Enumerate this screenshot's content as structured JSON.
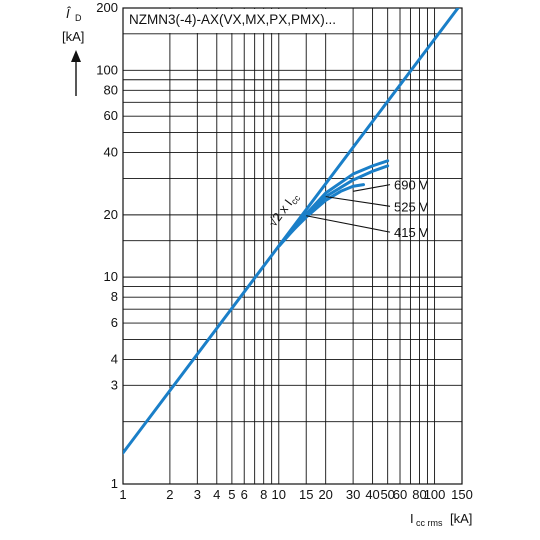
{
  "chart_data": {
    "type": "line",
    "title": "NZMN3(-4)-AX(VX,MX,PX,PMX)...",
    "scale": "log-log",
    "grid": true,
    "xlim": [
      1,
      150
    ],
    "ylim": [
      1,
      200
    ],
    "ylabel": {
      "symbol": "Î",
      "sub": "D",
      "unit": "[kA]"
    },
    "xlabel": {
      "symbol": "I",
      "sub": "cc rms",
      "unit": "[kA]"
    },
    "x_ticks": [
      1,
      2,
      3,
      4,
      5,
      6,
      8,
      10,
      15,
      20,
      30,
      40,
      50,
      60,
      80,
      100,
      150
    ],
    "x_tick_labels": [
      "1",
      "2",
      "3",
      "4",
      "5",
      "6",
      "8",
      "10",
      "15",
      "20",
      "30",
      "40",
      "50",
      "60",
      "80",
      "100",
      "150"
    ],
    "y_ticks": [
      1,
      3,
      4,
      6,
      8,
      10,
      20,
      40,
      60,
      80,
      100,
      200
    ],
    "y_tick_labels": [
      "1",
      "3",
      "4",
      "6",
      "8",
      "10",
      "20",
      "40",
      "60",
      "80",
      "100",
      "200"
    ],
    "line_color": "#1a7fc8",
    "series": [
      {
        "name": "√2 x Icc",
        "x": [
          1,
          141.4
        ],
        "y": [
          1.414,
          200
        ]
      },
      {
        "name": "690 V",
        "x": [
          10,
          12,
          15,
          20,
          25,
          30,
          35
        ],
        "y": [
          14.1,
          16.5,
          19.5,
          23.5,
          26,
          27.5,
          28
        ]
      },
      {
        "name": "525 V",
        "x": [
          10,
          15,
          20,
          30,
          40,
          50
        ],
        "y": [
          14.1,
          19.8,
          24.5,
          29.5,
          32.5,
          34.5
        ]
      },
      {
        "name": "415 V",
        "x": [
          10,
          15,
          20,
          30,
          40,
          50
        ],
        "y": [
          14.1,
          20.2,
          25.5,
          31.5,
          34.5,
          36.5
        ]
      }
    ],
    "annotations": [
      {
        "text": "690 V",
        "x": 60,
        "y": 28,
        "points_to": [
          30,
          26
        ]
      },
      {
        "text": "525 V",
        "x": 60,
        "y": 22,
        "points_to": [
          20,
          24.5
        ]
      },
      {
        "text": "415 V",
        "x": 60,
        "y": 16.5,
        "points_to": [
          15,
          19.8
        ]
      }
    ],
    "curve_label": {
      "root": "√2",
      "text": " x I",
      "sub": "cc"
    }
  }
}
